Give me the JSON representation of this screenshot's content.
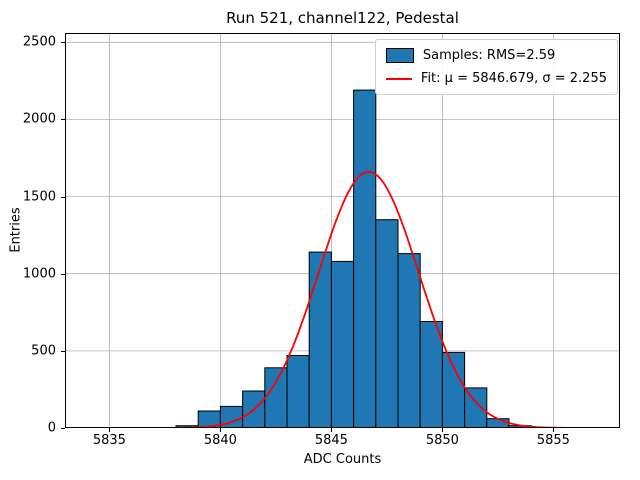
{
  "chart_data": {
    "type": "bar",
    "subtype": "histogram-with-gaussian-fit",
    "title": "Run 521, channel122, Pedestal",
    "xlabel": "ADC Counts",
    "ylabel": "Entries",
    "xlim": [
      5833,
      5858
    ],
    "ylim": [
      0,
      2560
    ],
    "xticks": [
      5835,
      5840,
      5845,
      5850,
      5855
    ],
    "yticks": [
      0,
      500,
      1000,
      1500,
      2000,
      2500
    ],
    "grid": true,
    "legend_position": "upper right",
    "histogram": {
      "bin_width": 1,
      "left_edges": [
        5838,
        5839,
        5840,
        5841,
        5842,
        5843,
        5844,
        5845,
        5846,
        5847,
        5848,
        5849,
        5850,
        5851,
        5852,
        5853
      ],
      "counts": [
        15,
        110,
        140,
        240,
        390,
        470,
        1140,
        1080,
        2190,
        1350,
        1130,
        690,
        490,
        260,
        60,
        15
      ],
      "fill_color": "#1f77b4",
      "edge_color": "#000000"
    },
    "fit": {
      "mu": 5846.679,
      "sigma": 2.255,
      "amplitude": 1660,
      "color": "#ff0000",
      "draw_range": [
        5834,
        5855.5
      ]
    },
    "legend": [
      {
        "label": "Samples: RMS=2.59",
        "marker": "patch",
        "color": "#1f77b4"
      },
      {
        "label": "Fit: μ = 5846.679, σ = 2.255",
        "marker": "line",
        "color": "#ff0000"
      }
    ]
  }
}
